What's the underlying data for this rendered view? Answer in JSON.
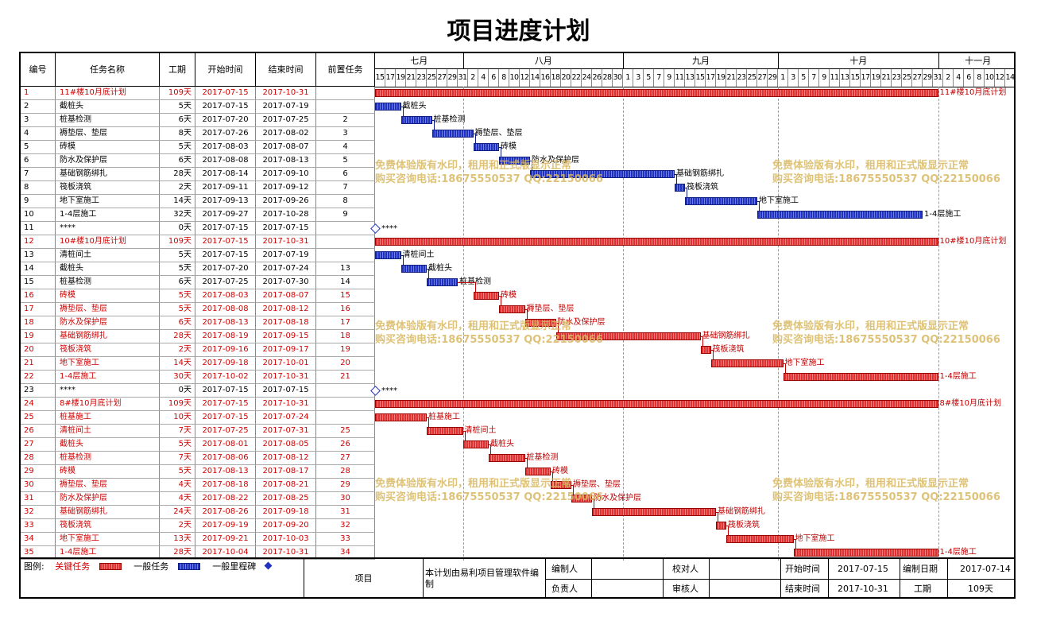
{
  "title": "项目进度计划",
  "headers": {
    "id": "编号",
    "name": "任务名称",
    "duration": "工期",
    "start": "开始时间",
    "end": "结束时间",
    "pred": "前置任务"
  },
  "months": [
    "七月",
    "八月",
    "九月",
    "十月",
    "十一月"
  ],
  "days": [
    "15",
    "17",
    "19",
    "21",
    "23",
    "25",
    "27",
    "29",
    "31",
    "2",
    "4",
    "6",
    "8",
    "10",
    "12",
    "14",
    "16",
    "18",
    "20",
    "22",
    "24",
    "26",
    "28",
    "30",
    "1",
    "3",
    "5",
    "7",
    "9",
    "11",
    "13",
    "15",
    "17",
    "19",
    "21",
    "23",
    "25",
    "27",
    "29",
    "1",
    "3",
    "5",
    "7",
    "9",
    "11",
    "13",
    "15",
    "17",
    "19",
    "21",
    "23",
    "25",
    "27",
    "29",
    "31",
    "2",
    "4",
    "6",
    "8",
    "10",
    "12",
    "14"
  ],
  "tasks": [
    {
      "id": "1",
      "name": "11#楼10月底计划",
      "duration": "109天",
      "start": "2017-07-15",
      "end": "2017-10-31",
      "pred": "",
      "crit": true,
      "type": "bar",
      "label": "11#楼10月底计划"
    },
    {
      "id": "2",
      "name": "截桩头",
      "duration": "5天",
      "start": "2017-07-15",
      "end": "2017-07-19",
      "pred": "",
      "crit": false,
      "type": "bar",
      "label": "截桩头"
    },
    {
      "id": "3",
      "name": "桩基检测",
      "duration": "6天",
      "start": "2017-07-20",
      "end": "2017-07-25",
      "pred": "2",
      "crit": false,
      "type": "bar",
      "label": "桩基检测"
    },
    {
      "id": "4",
      "name": "褥垫层、垫层",
      "duration": "8天",
      "start": "2017-07-26",
      "end": "2017-08-02",
      "pred": "3",
      "crit": false,
      "type": "bar",
      "label": "褥垫层、垫层"
    },
    {
      "id": "5",
      "name": "砖模",
      "duration": "5天",
      "start": "2017-08-03",
      "end": "2017-08-07",
      "pred": "4",
      "crit": false,
      "type": "bar",
      "label": "砖模"
    },
    {
      "id": "6",
      "name": "防水及保护层",
      "duration": "6天",
      "start": "2017-08-08",
      "end": "2017-08-13",
      "pred": "5",
      "crit": false,
      "type": "bar",
      "label": "防水及保护层"
    },
    {
      "id": "7",
      "name": "基础钢筋绑扎",
      "duration": "28天",
      "start": "2017-08-14",
      "end": "2017-09-10",
      "pred": "6",
      "crit": false,
      "type": "bar",
      "label": "基础钢筋绑扎"
    },
    {
      "id": "8",
      "name": "筏板浇筑",
      "duration": "2天",
      "start": "2017-09-11",
      "end": "2017-09-12",
      "pred": "7",
      "crit": false,
      "type": "bar",
      "label": "筏板浇筑"
    },
    {
      "id": "9",
      "name": "地下室施工",
      "duration": "14天",
      "start": "2017-09-13",
      "end": "2017-09-26",
      "pred": "8",
      "crit": false,
      "type": "bar",
      "label": "地下室施工"
    },
    {
      "id": "10",
      "name": "1-4层施工",
      "duration": "32天",
      "start": "2017-09-27",
      "end": "2017-10-28",
      "pred": "9",
      "crit": false,
      "type": "bar",
      "label": "1-4层施工"
    },
    {
      "id": "11",
      "name": "****",
      "duration": "0天",
      "start": "2017-07-15",
      "end": "2017-07-15",
      "pred": "",
      "crit": false,
      "type": "milestone",
      "label": "****"
    },
    {
      "id": "12",
      "name": "10#楼10月底计划",
      "duration": "109天",
      "start": "2017-07-15",
      "end": "2017-10-31",
      "pred": "",
      "crit": true,
      "type": "bar",
      "label": "10#楼10月底计划"
    },
    {
      "id": "13",
      "name": "清桩间土",
      "duration": "5天",
      "start": "2017-07-15",
      "end": "2017-07-19",
      "pred": "",
      "crit": false,
      "type": "bar",
      "label": "清桩间土"
    },
    {
      "id": "14",
      "name": "截桩头",
      "duration": "5天",
      "start": "2017-07-20",
      "end": "2017-07-24",
      "pred": "13",
      "crit": false,
      "type": "bar",
      "label": "截桩头"
    },
    {
      "id": "15",
      "name": "桩基检测",
      "duration": "6天",
      "start": "2017-07-25",
      "end": "2017-07-30",
      "pred": "14",
      "crit": false,
      "type": "bar",
      "label": "桩基检测"
    },
    {
      "id": "16",
      "name": "砖模",
      "duration": "5天",
      "start": "2017-08-03",
      "end": "2017-08-07",
      "pred": "15",
      "crit": true,
      "type": "bar",
      "label": "砖模"
    },
    {
      "id": "17",
      "name": "褥垫层、垫层",
      "duration": "5天",
      "start": "2017-08-08",
      "end": "2017-08-12",
      "pred": "16",
      "crit": true,
      "type": "bar",
      "label": "褥垫层、垫层"
    },
    {
      "id": "18",
      "name": "防水及保护层",
      "duration": "6天",
      "start": "2017-08-13",
      "end": "2017-08-18",
      "pred": "17",
      "crit": true,
      "type": "bar",
      "label": "防水及保护层"
    },
    {
      "id": "19",
      "name": "基础钢筋绑扎",
      "duration": "28天",
      "start": "2017-08-19",
      "end": "2017-09-15",
      "pred": "18",
      "crit": true,
      "type": "bar",
      "label": "基础钢筋绑扎"
    },
    {
      "id": "20",
      "name": "筏板浇筑",
      "duration": "2天",
      "start": "2017-09-16",
      "end": "2017-09-17",
      "pred": "19",
      "crit": true,
      "type": "bar",
      "label": "筏板浇筑"
    },
    {
      "id": "21",
      "name": "地下室施工",
      "duration": "14天",
      "start": "2017-09-18",
      "end": "2017-10-01",
      "pred": "20",
      "crit": true,
      "type": "bar",
      "label": "地下室施工"
    },
    {
      "id": "22",
      "name": "1-4层施工",
      "duration": "30天",
      "start": "2017-10-02",
      "end": "2017-10-31",
      "pred": "21",
      "crit": true,
      "type": "bar",
      "label": "1-4层施工"
    },
    {
      "id": "23",
      "name": "****",
      "duration": "0天",
      "start": "2017-07-15",
      "end": "2017-07-15",
      "pred": "",
      "crit": false,
      "type": "milestone",
      "label": "****"
    },
    {
      "id": "24",
      "name": "8#楼10月底计划",
      "duration": "109天",
      "start": "2017-07-15",
      "end": "2017-10-31",
      "pred": "",
      "crit": true,
      "type": "bar",
      "label": "8#楼10月底计划"
    },
    {
      "id": "25",
      "name": "桩基施工",
      "duration": "10天",
      "start": "2017-07-15",
      "end": "2017-07-24",
      "pred": "",
      "crit": true,
      "type": "bar",
      "label": "桩基施工"
    },
    {
      "id": "26",
      "name": "清桩间土",
      "duration": "7天",
      "start": "2017-07-25",
      "end": "2017-07-31",
      "pred": "25",
      "crit": true,
      "type": "bar",
      "label": "清桩间土"
    },
    {
      "id": "27",
      "name": "截桩头",
      "duration": "5天",
      "start": "2017-08-01",
      "end": "2017-08-05",
      "pred": "26",
      "crit": true,
      "type": "bar",
      "label": "截桩头"
    },
    {
      "id": "28",
      "name": "桩基检测",
      "duration": "7天",
      "start": "2017-08-06",
      "end": "2017-08-12",
      "pred": "27",
      "crit": true,
      "type": "bar",
      "label": "桩基检测"
    },
    {
      "id": "29",
      "name": "砖模",
      "duration": "5天",
      "start": "2017-08-13",
      "end": "2017-08-17",
      "pred": "28",
      "crit": true,
      "type": "bar",
      "label": "砖模"
    },
    {
      "id": "30",
      "name": "褥垫层、垫层",
      "duration": "4天",
      "start": "2017-08-18",
      "end": "2017-08-21",
      "pred": "29",
      "crit": true,
      "type": "bar",
      "label": "褥垫层、垫层"
    },
    {
      "id": "31",
      "name": "防水及保护层",
      "duration": "4天",
      "start": "2017-08-22",
      "end": "2017-08-25",
      "pred": "30",
      "crit": true,
      "type": "bar",
      "label": "防水及保护层"
    },
    {
      "id": "32",
      "name": "基础钢筋绑扎",
      "duration": "24天",
      "start": "2017-08-26",
      "end": "2017-09-18",
      "pred": "31",
      "crit": true,
      "type": "bar",
      "label": "基础钢筋绑扎"
    },
    {
      "id": "33",
      "name": "筏板浇筑",
      "duration": "2天",
      "start": "2017-09-19",
      "end": "2017-09-20",
      "pred": "32",
      "crit": true,
      "type": "bar",
      "label": "筏板浇筑"
    },
    {
      "id": "34",
      "name": "地下室施工",
      "duration": "13天",
      "start": "2017-09-21",
      "end": "2017-10-03",
      "pred": "33",
      "crit": true,
      "type": "bar",
      "label": "地下室施工"
    },
    {
      "id": "35",
      "name": "1-4层施工",
      "duration": "28天",
      "start": "2017-10-04",
      "end": "2017-10-31",
      "pred": "34",
      "crit": true,
      "type": "bar",
      "label": "1-4层施工"
    }
  ],
  "watermark": {
    "line1": "免费体验版有水印，租用和正式版显示正常",
    "line2": "购买咨询电话:18675550537 QQ:22150066"
  },
  "legend": {
    "prefix": "图例:",
    "critical": "关键任务",
    "normal": "一般任务",
    "milestone": "一般里程碑"
  },
  "footer": {
    "project_label": "项目",
    "note": "本计划由易利项目管理软件编制",
    "editor_label": "编制人",
    "checker_label": "校对人",
    "start_label": "开始时间",
    "start_value": "2017-07-15",
    "edit_date_label": "编制日期",
    "edit_date_value": "2017-07-14",
    "owner_label": "负责人",
    "reviewer_label": "审核人",
    "end_label": "结束时间",
    "end_value": "2017-10-31",
    "period_label": "工期",
    "period_value": "109天"
  },
  "colors": {
    "critical": "#e03030",
    "normal": "#2030c0",
    "milestone": "#2030c0",
    "watermark": "#d8b860"
  }
}
